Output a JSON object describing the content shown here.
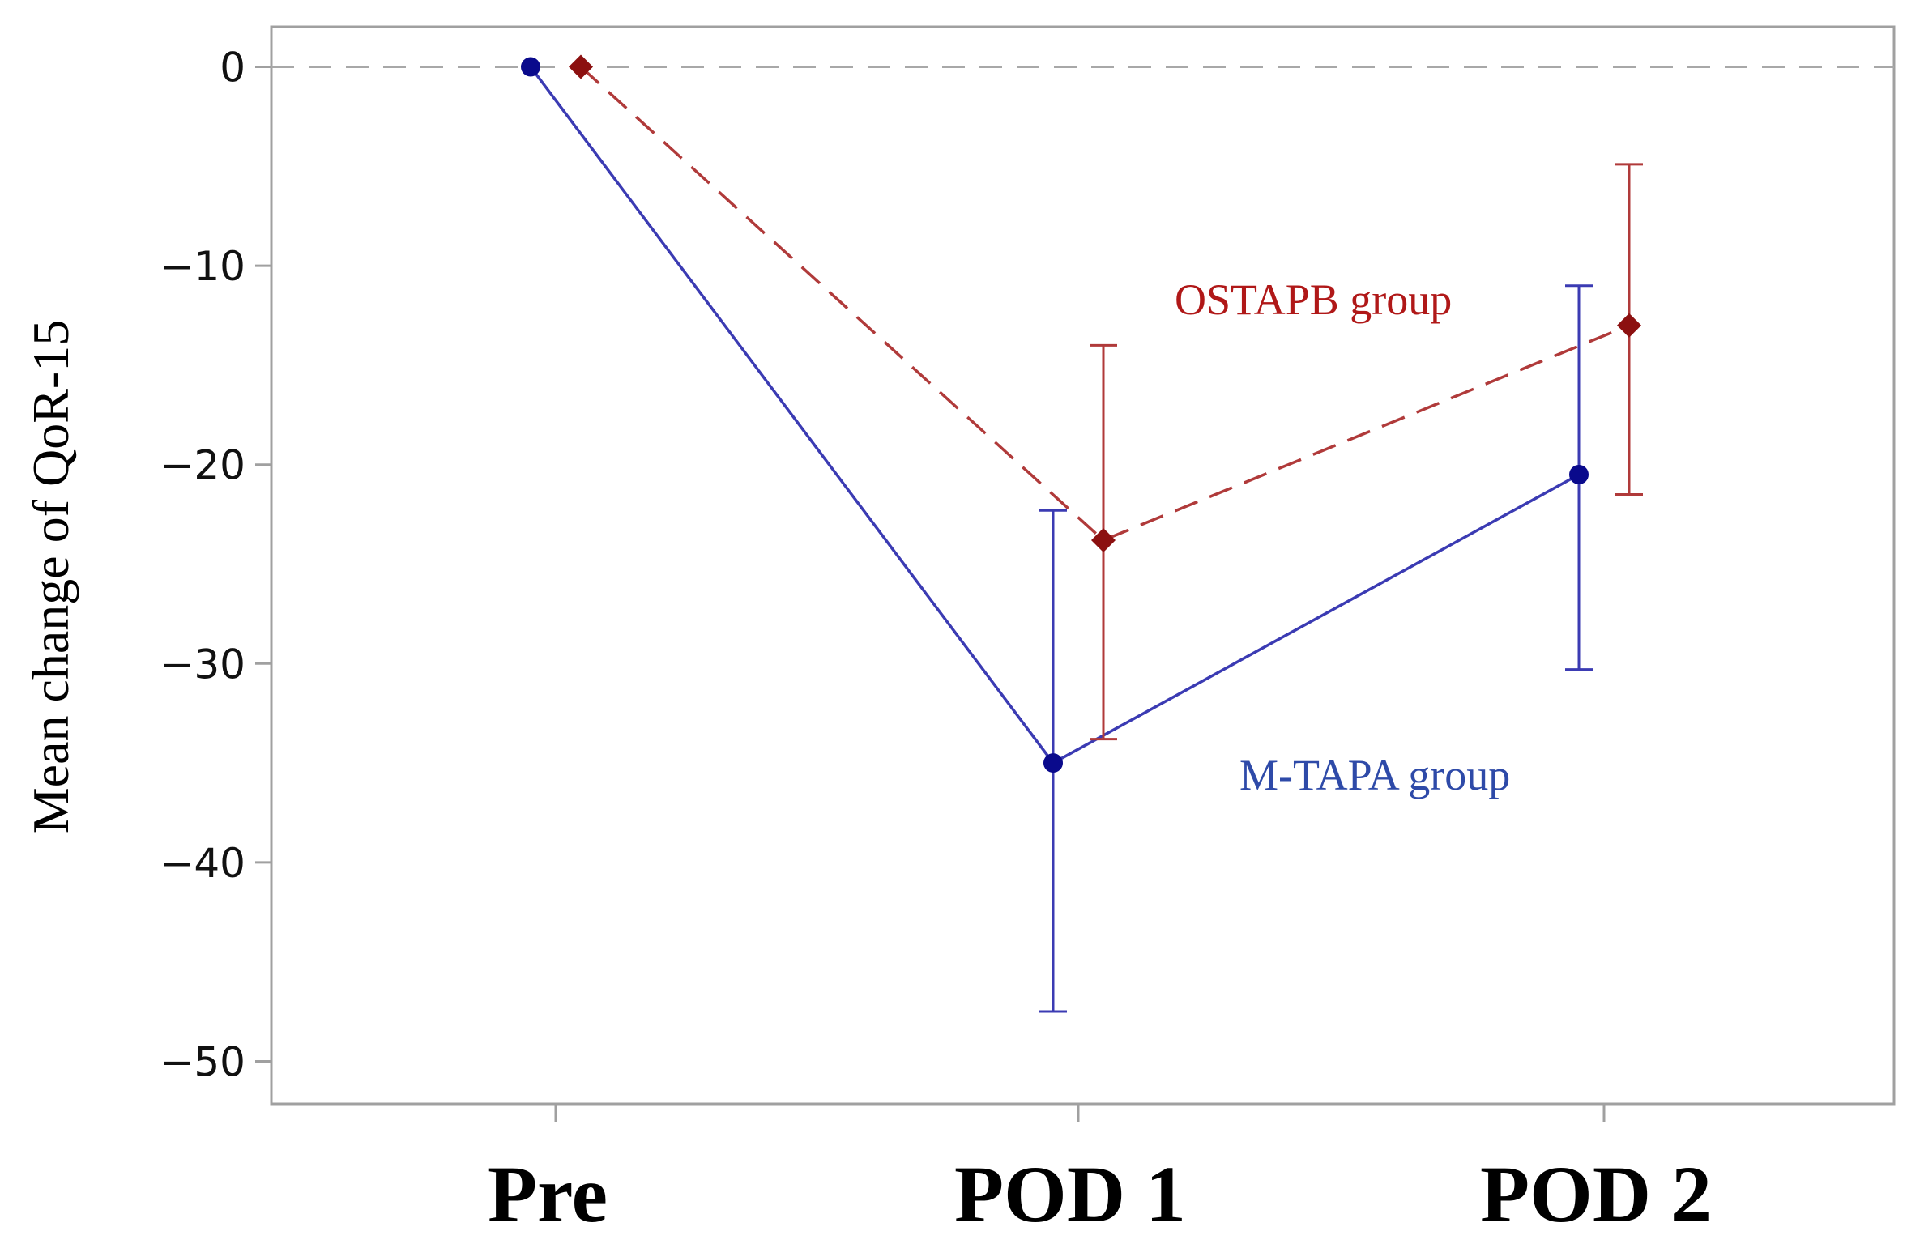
{
  "chart_data": {
    "type": "line",
    "title": "",
    "xlabel": "",
    "ylabel": "Mean change of QoR-15",
    "categories": [
      "Pre",
      "POD 1",
      "POD 2"
    ],
    "ylim": [
      -51,
      1
    ],
    "yticks": [
      0,
      -10,
      -20,
      -30,
      -40,
      -50
    ],
    "ytick_labels": [
      "0",
      "−10",
      "−20",
      "−30",
      "−40",
      "−50"
    ],
    "reference_line": 0,
    "grid": false,
    "legend": "none",
    "series": [
      {
        "name": "M-TAPA group",
        "color": "#3b3bb3",
        "marker_color": "#0a0a8c",
        "marker": "circle",
        "line_style": "solid",
        "values": [
          0,
          -35,
          -20.5
        ],
        "error_low": [
          null,
          -47.5,
          -30.3
        ],
        "error_high": [
          null,
          -22.3,
          -11.0
        ]
      },
      {
        "name": "OSTAPB group",
        "color": "#b03a3a",
        "marker_color": "#8c1010",
        "marker": "diamond",
        "line_style": "dashed",
        "values": [
          0,
          -23.8,
          -13.0
        ],
        "error_low": [
          null,
          -33.8,
          -21.5
        ],
        "error_high": [
          null,
          -14.0,
          -4.9
        ]
      }
    ]
  }
}
